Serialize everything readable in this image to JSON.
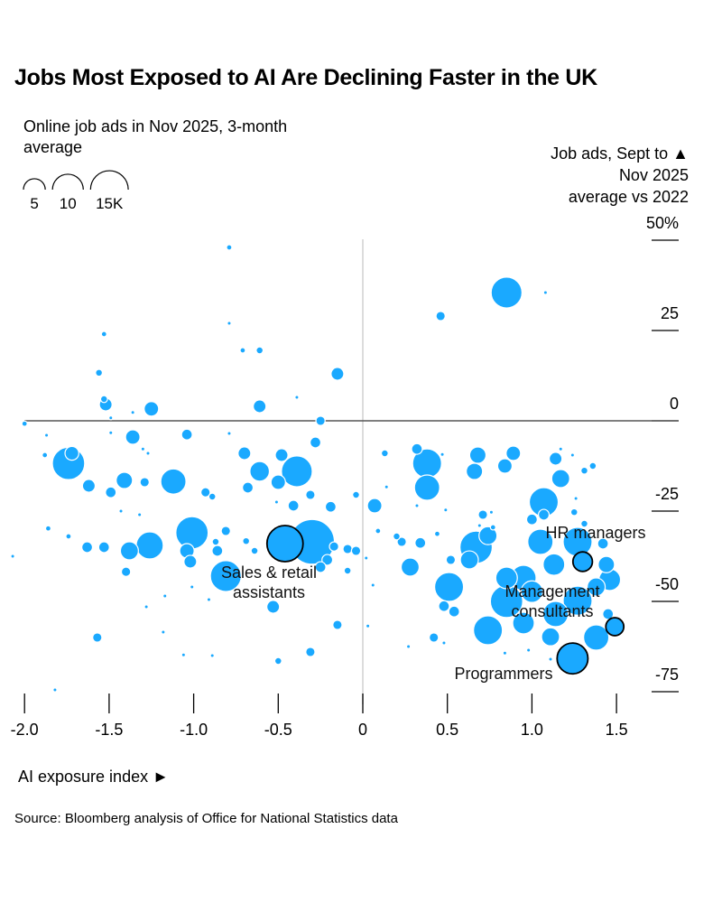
{
  "title": "Jobs Most Exposed to AI Are Declining Faster in the UK",
  "subtitle": "Online job ads in Nov 2025, 3-month average",
  "y_axis_title": [
    "Job ads, Sept to ▲",
    "Nov 2025",
    "average vs 2022"
  ],
  "x_axis_title": "AI exposure index ►",
  "source": "Source: Bloomberg analysis of Office for National Statistics data",
  "colors": {
    "bubble": "#1aa9ff",
    "highlight_ring": "#000000",
    "zero_line": "#555555"
  },
  "chart_data": {
    "type": "scatter",
    "subtype": "bubble",
    "xlabel": "AI exposure index ►",
    "ylabel": "Job ads, Sept to Nov 2025 average vs 2022",
    "xlim": [
      -2.1,
      1.6
    ],
    "ylim": [
      -75,
      50
    ],
    "x_ticks": [
      {
        "v": -2.0,
        "label": "-2.0"
      },
      {
        "v": -1.5,
        "label": "-1.5"
      },
      {
        "v": -1.0,
        "label": "-1.0"
      },
      {
        "v": -0.5,
        "label": "-0.5"
      },
      {
        "v": 0,
        "label": "0"
      },
      {
        "v": 0.5,
        "label": "0.5"
      },
      {
        "v": 1.0,
        "label": "1.0"
      },
      {
        "v": 1.5,
        "label": "1.5"
      }
    ],
    "y_ticks": [
      {
        "v": 50,
        "label": "50%"
      },
      {
        "v": 25,
        "label": "25"
      },
      {
        "v": 0,
        "label": "0"
      },
      {
        "v": -25,
        "label": "-25"
      },
      {
        "v": -50,
        "label": "-50"
      },
      {
        "v": -75,
        "label": "-75"
      }
    ],
    "size_legend": {
      "title": "Online job ads in Nov 2025, 3-month average",
      "entries": [
        {
          "v": 5,
          "label": "5"
        },
        {
          "v": 10,
          "label": "10"
        },
        {
          "v": 15,
          "label": "15K"
        }
      ]
    },
    "points_fields": [
      "x",
      "y",
      "size_k"
    ],
    "points": [
      [
        -0.79,
        48,
        0.3
      ],
      [
        0.85,
        35.5,
        10
      ],
      [
        1.08,
        35.5,
        0.15
      ],
      [
        0.46,
        29,
        0.9
      ],
      [
        -0.79,
        27,
        0.15
      ],
      [
        -1.53,
        24,
        0.3
      ],
      [
        -0.71,
        19.5,
        0.3
      ],
      [
        -0.61,
        19.5,
        0.5
      ],
      [
        -0.15,
        13,
        1.7
      ],
      [
        -1.56,
        13.3,
        0.5
      ],
      [
        -1.52,
        4.5,
        1.7
      ],
      [
        -1.53,
        6,
        0.5
      ],
      [
        -0.39,
        6.5,
        0.15
      ],
      [
        -1.25,
        3.3,
        2.2
      ],
      [
        -0.61,
        4,
        1.7
      ],
      [
        -1.36,
        2.3,
        0.15
      ],
      [
        -1.49,
        0.8,
        0.15
      ],
      [
        -0.25,
        0,
        0.9
      ],
      [
        -2.0,
        -0.8,
        0.3
      ],
      [
        -1.87,
        -4,
        0.15
      ],
      [
        -1.49,
        -3.3,
        0.15
      ],
      [
        -1.36,
        -4.5,
        2.2
      ],
      [
        -1.04,
        -3.8,
        1.2
      ],
      [
        -0.79,
        -3.5,
        0.15
      ],
      [
        -1.74,
        -11.8,
        11
      ],
      [
        -1.72,
        -9,
        2
      ],
      [
        -1.88,
        -9.5,
        0.3
      ],
      [
        -1.3,
        -7.8,
        0.15
      ],
      [
        -1.27,
        -9,
        0.15
      ],
      [
        -0.7,
        -9,
        1.7
      ],
      [
        -0.48,
        -9.5,
        1.7
      ],
      [
        -0.28,
        -6,
        1.2
      ],
      [
        -0.39,
        -14,
        10
      ],
      [
        -0.61,
        -14,
        4
      ],
      [
        -1.12,
        -16.8,
        6.7
      ],
      [
        -1.62,
        -18,
        1.7
      ],
      [
        -1.41,
        -16.5,
        2.8
      ],
      [
        -1.49,
        -19.8,
        1.2
      ],
      [
        -1.29,
        -17,
        0.9
      ],
      [
        -0.93,
        -19.8,
        0.9
      ],
      [
        -0.89,
        -21,
        0.5
      ],
      [
        -0.68,
        -18.5,
        1.2
      ],
      [
        -0.5,
        -17,
        2.2
      ],
      [
        -0.41,
        -23.5,
        1.2
      ],
      [
        -0.51,
        -22.5,
        0.15
      ],
      [
        -0.31,
        -20.5,
        0.9
      ],
      [
        -0.19,
        -23.8,
        1.2
      ],
      [
        -0.04,
        -20.5,
        0.5
      ],
      [
        -1.43,
        -25,
        0.15
      ],
      [
        -1.32,
        -26,
        0.15
      ],
      [
        -1.86,
        -29.8,
        0.3
      ],
      [
        -1.74,
        -32,
        0.3
      ],
      [
        -1.63,
        -35,
        1.2
      ],
      [
        -1.53,
        -35,
        1.2
      ],
      [
        -1.26,
        -34.5,
        7.7
      ],
      [
        -1.38,
        -36,
        3.4
      ],
      [
        -1.01,
        -31,
        11
      ],
      [
        -1.04,
        -36,
        2.2
      ],
      [
        -1.02,
        -39,
        1.7
      ],
      [
        -0.86,
        -36,
        1.2
      ],
      [
        -0.81,
        -30.5,
        0.9
      ],
      [
        -0.87,
        -33.5,
        0.5
      ],
      [
        -0.69,
        -33.3,
        0.5
      ],
      [
        -0.64,
        -36,
        0.5
      ],
      [
        -0.3,
        -33.5,
        21
      ],
      [
        -0.17,
        -34.8,
        0.9
      ],
      [
        -0.09,
        -35.5,
        0.9
      ],
      [
        -0.04,
        -36,
        0.9
      ],
      [
        -0.21,
        -38.5,
        1.2
      ],
      [
        -0.25,
        -40.5,
        1.2
      ],
      [
        -1.4,
        -41.8,
        0.9
      ],
      [
        -0.81,
        -43,
        10
      ],
      [
        -1.01,
        -46,
        0.15
      ],
      [
        -1.17,
        -48.5,
        0.15
      ],
      [
        -0.91,
        -49.5,
        0.15
      ],
      [
        -1.28,
        -51.5,
        0.15
      ],
      [
        -0.53,
        -51.5,
        1.7
      ],
      [
        0.06,
        -45.5,
        0.15
      ],
      [
        -0.15,
        -56.5,
        0.9
      ],
      [
        0.03,
        -56.8,
        0.15
      ],
      [
        -1.57,
        -60,
        0.9
      ],
      [
        -1.18,
        -58.5,
        0.15
      ],
      [
        -0.89,
        -65,
        0.15
      ],
      [
        -0.31,
        -64,
        0.9
      ],
      [
        -0.5,
        -66.5,
        0.5
      ],
      [
        -1.06,
        -64.8,
        0.15
      ],
      [
        -1.82,
        -74.5,
        0.15
      ],
      [
        -2.07,
        -37.5,
        0.15
      ],
      [
        -0.09,
        -41.5,
        0.5
      ],
      [
        0.13,
        -9,
        0.5
      ],
      [
        0.32,
        -7.8,
        1.2
      ],
      [
        0.38,
        -11.8,
        8.8
      ],
      [
        0.38,
        -18.5,
        6.7
      ],
      [
        0.47,
        -9.3,
        0.15
      ],
      [
        0.68,
        -9.5,
        2.8
      ],
      [
        0.66,
        -14,
        2.8
      ],
      [
        0.84,
        -12.5,
        2.2
      ],
      [
        0.14,
        -18.3,
        0.15
      ],
      [
        0.07,
        -23.5,
        2.2
      ],
      [
        1.14,
        -10.5,
        1.7
      ],
      [
        1.17,
        -7.8,
        0.15
      ],
      [
        1.24,
        -9.5,
        0.15
      ],
      [
        1.17,
        -16,
        3.4
      ],
      [
        0.89,
        -9,
        2.2
      ],
      [
        1.31,
        -13.8,
        0.5
      ],
      [
        1.36,
        -12.5,
        0.5
      ],
      [
        1.07,
        -22.5,
        8.8
      ],
      [
        1.26,
        -21.5,
        0.15
      ],
      [
        1.07,
        -26,
        1.2
      ],
      [
        0.76,
        -25.3,
        0.15
      ],
      [
        0.71,
        -26,
        0.9
      ],
      [
        0.49,
        -24.7,
        0.15
      ],
      [
        0.32,
        -23.5,
        0.15
      ],
      [
        0.69,
        -29,
        0.15
      ],
      [
        0.77,
        -29.5,
        0.3
      ],
      [
        1.0,
        -27.3,
        1.2
      ],
      [
        1.25,
        -25.3,
        0.5
      ],
      [
        1.31,
        -28.5,
        0.5
      ],
      [
        0.2,
        -32,
        0.5
      ],
      [
        0.23,
        -33.5,
        0.9
      ],
      [
        0.34,
        -33.8,
        1.2
      ],
      [
        0.44,
        -31.3,
        0.3
      ],
      [
        0.09,
        -30.5,
        0.3
      ],
      [
        0.02,
        -38,
        0.15
      ],
      [
        0.28,
        -40.5,
        3.4
      ],
      [
        0.51,
        -46,
        8.8
      ],
      [
        0.67,
        -35,
        11
      ],
      [
        0.74,
        -31.8,
        3.4
      ],
      [
        0.63,
        -38.5,
        3.4
      ],
      [
        0.48,
        -51.3,
        1.2
      ],
      [
        0.54,
        -52.8,
        1.2
      ],
      [
        0.74,
        -58,
        8.8
      ],
      [
        0.85,
        -50,
        11
      ],
      [
        0.95,
        -43.5,
        6.7
      ],
      [
        0.85,
        -43.5,
        4.9
      ],
      [
        1.05,
        -33.5,
        6.7
      ],
      [
        1.13,
        -39.8,
        4.9
      ],
      [
        1.27,
        -33.5,
        8.8
      ],
      [
        1.42,
        -34,
        1.2
      ],
      [
        1.44,
        -39.8,
        2.8
      ],
      [
        1.46,
        -44,
        4.9
      ],
      [
        1.38,
        -46,
        3.4
      ],
      [
        1.27,
        -49.8,
        8.8
      ],
      [
        1.14,
        -53.5,
        6.7
      ],
      [
        1.0,
        -47.3,
        4.9
      ],
      [
        0.95,
        -56,
        4.9
      ],
      [
        1.11,
        -59.8,
        3.4
      ],
      [
        1.38,
        -60,
        6.7
      ],
      [
        1.45,
        -53.5,
        1.2
      ],
      [
        0.84,
        -64.3,
        0.15
      ],
      [
        0.42,
        -60,
        0.9
      ],
      [
        0.48,
        -61.5,
        0.15
      ],
      [
        0.27,
        -62.5,
        0.15
      ],
      [
        0.98,
        -63.5,
        0.15
      ],
      [
        1.11,
        -66,
        0.15
      ],
      [
        0.52,
        -38.5,
        0.9
      ]
    ],
    "annotations": [
      {
        "label_lines": [
          "Sales & retail",
          "assistants"
        ],
        "x": -0.46,
        "y": -34,
        "size_k": 13.7
      },
      {
        "label_lines": [
          "HR managers"
        ],
        "x": 1.3,
        "y": -39,
        "size_k": 4
      },
      {
        "label_lines": [
          "Management",
          "consultants"
        ],
        "x": 1.49,
        "y": -57,
        "size_k": 3.4
      },
      {
        "label_lines": [
          "Programmers"
        ],
        "x": 1.24,
        "y": -65.8,
        "size_k": 10
      }
    ]
  }
}
